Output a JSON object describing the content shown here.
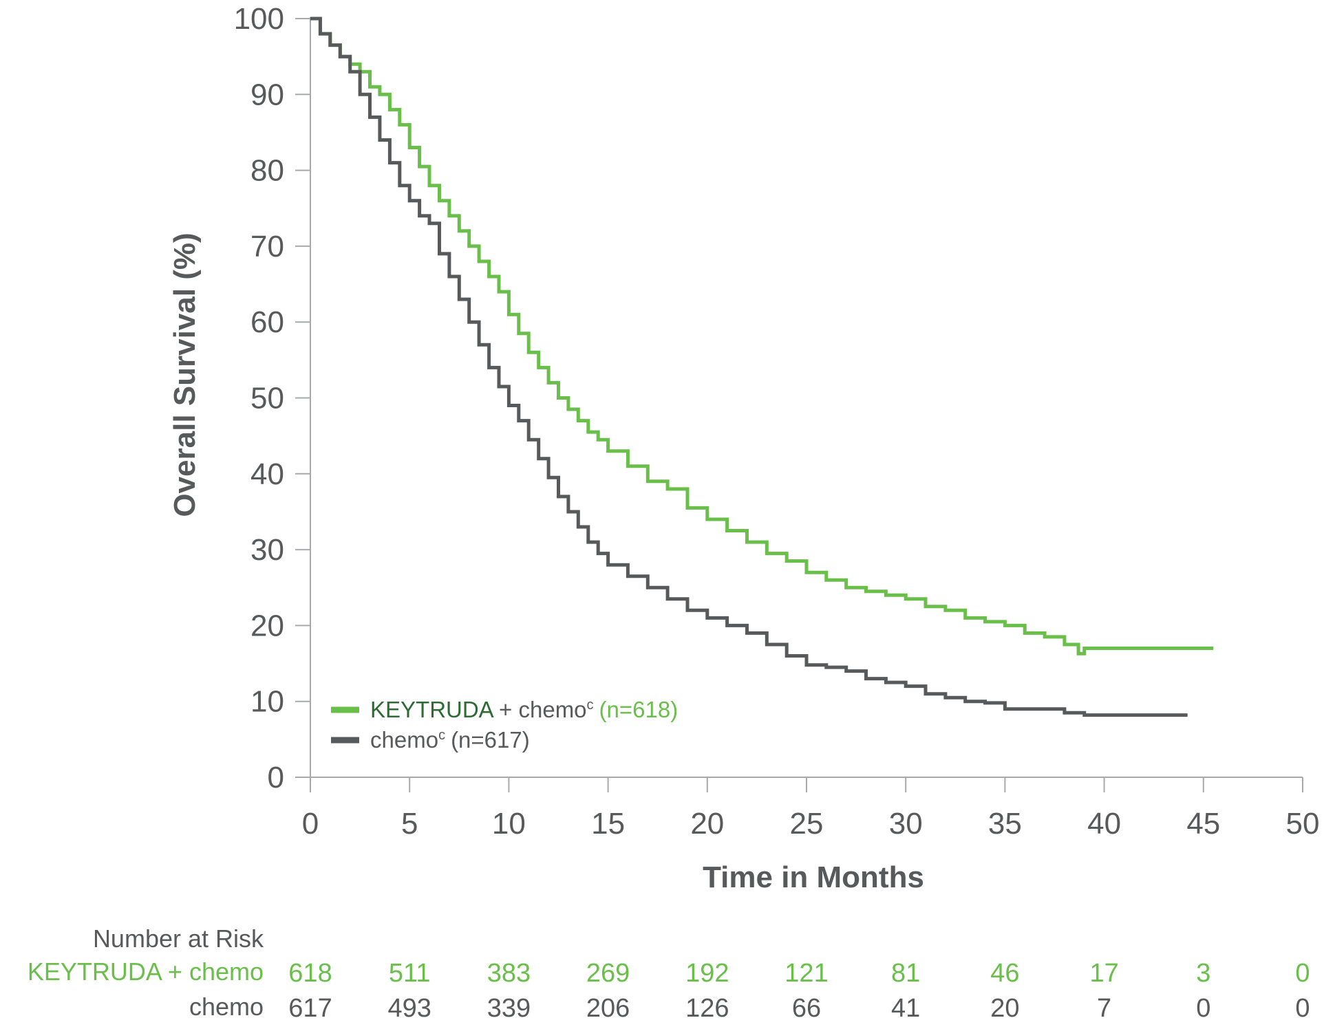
{
  "chart_data": {
    "type": "line",
    "ylabel": "Overall Survival (%)",
    "xlabel": "Time in Months",
    "xlim": [
      0,
      50
    ],
    "ylim": [
      0,
      100
    ],
    "x_ticks": [
      0,
      5,
      10,
      15,
      20,
      25,
      30,
      35,
      40,
      45,
      50
    ],
    "y_ticks": [
      0,
      10,
      20,
      30,
      40,
      50,
      60,
      70,
      80,
      90,
      100
    ],
    "grid": false,
    "legend_position": "bottom-left",
    "legend": [
      {
        "name": "KEYTRUDA",
        "mid": " + chemo",
        "sup": "c",
        "n": "(n=618)",
        "color": "#6abf4b",
        "name_color": "#2e6b34"
      },
      {
        "name": "chemo",
        "mid": "",
        "sup": "c",
        "n": "(n=617)",
        "color": "#58595b",
        "name_color": "#58595b"
      }
    ],
    "series": [
      {
        "name": "KEYTRUDA + chemo",
        "color": "#6abf4b",
        "x": [
          0,
          0.5,
          1,
          1.5,
          2,
          2.5,
          3,
          3.5,
          4,
          4.5,
          5,
          5.5,
          6,
          6.5,
          7,
          7.5,
          8,
          8.5,
          9,
          9.5,
          10,
          10.5,
          11,
          11.5,
          12,
          12.5,
          13,
          13.5,
          14,
          14.5,
          15,
          16,
          17,
          18,
          19,
          20,
          21,
          22,
          23,
          24,
          25,
          26,
          27,
          28,
          29,
          30,
          31,
          32,
          33,
          34,
          35,
          36,
          37,
          38,
          38.7,
          39,
          40,
          42,
          44,
          45.5
        ],
        "y": [
          100,
          98,
          96.5,
          95,
          94,
          93,
          91,
          90,
          88,
          86,
          83,
          80.5,
          78,
          76,
          74,
          72,
          70,
          68,
          66,
          64,
          61,
          58.5,
          56,
          54,
          52,
          50,
          48.5,
          47,
          45.5,
          44.5,
          43,
          41,
          39,
          38,
          35.5,
          34,
          32.5,
          31,
          29.5,
          28.5,
          27,
          26,
          25,
          24.5,
          24,
          23.5,
          22.5,
          22,
          21,
          20.5,
          20,
          19,
          18.5,
          17.5,
          16.3,
          17,
          17,
          17,
          17,
          17
        ]
      },
      {
        "name": "chemo",
        "color": "#58595b",
        "x": [
          0,
          0.5,
          1,
          1.5,
          2,
          2.5,
          3,
          3.5,
          4,
          4.5,
          5,
          5.5,
          6,
          6.5,
          7,
          7.5,
          8,
          8.5,
          9,
          9.5,
          10,
          10.5,
          11,
          11.5,
          12,
          12.5,
          13,
          13.5,
          14,
          14.5,
          15,
          16,
          17,
          18,
          19,
          20,
          21,
          22,
          23,
          24,
          25,
          26,
          27,
          28,
          29,
          30,
          31,
          32,
          33,
          34,
          35,
          36,
          37,
          38,
          39,
          40,
          42,
          44.2
        ],
        "y": [
          100,
          98,
          96.5,
          95,
          93,
          90,
          87,
          84,
          81,
          78,
          76,
          74,
          73,
          69,
          66,
          63,
          60,
          57,
          54,
          51.5,
          49,
          47,
          44.5,
          42,
          39.5,
          37,
          35,
          33,
          31,
          29.5,
          28,
          26.5,
          25,
          23.5,
          22,
          21,
          20,
          19,
          17.5,
          16,
          14.8,
          14.5,
          14,
          13,
          12.5,
          12,
          11,
          10.5,
          10,
          9.8,
          9,
          9,
          9,
          8.5,
          8.2,
          8.2,
          8.2,
          8.2
        ]
      }
    ],
    "risk_table": {
      "title": "Number at Risk",
      "times": [
        0,
        5,
        10,
        15,
        20,
        25,
        30,
        35,
        40,
        45,
        50
      ],
      "rows": [
        {
          "label": "KEYTRUDA + chemo",
          "color": "#6abf4b",
          "values": [
            "618",
            "511",
            "383",
            "269",
            "192",
            "121",
            "81",
            "46",
            "17",
            "3",
            "0"
          ]
        },
        {
          "label": "chemo",
          "color": "#58595b",
          "values": [
            "617",
            "493",
            "339",
            "206",
            "126",
            "66",
            "41",
            "20",
            "7",
            "0",
            "0"
          ]
        }
      ]
    }
  }
}
